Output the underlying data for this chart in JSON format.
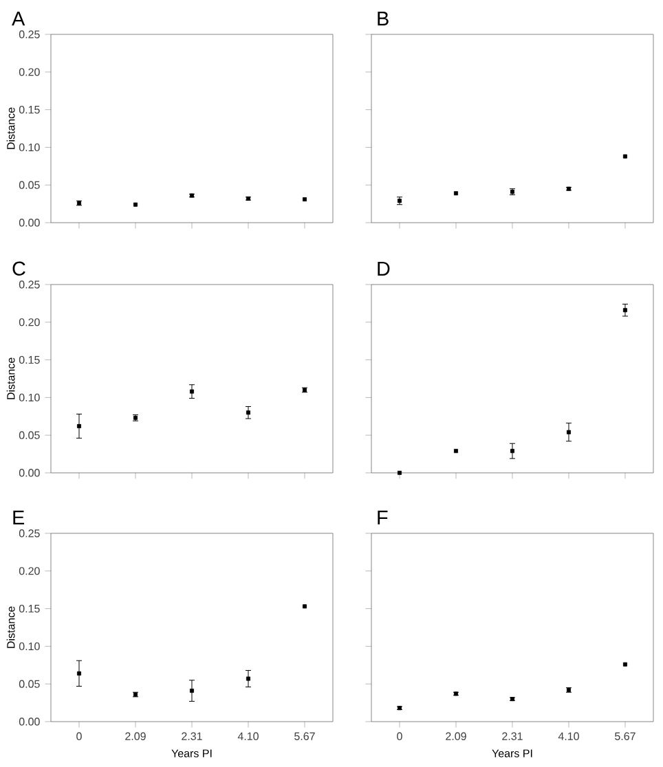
{
  "chart_data": [
    {
      "type": "scatter",
      "title": "A",
      "ylabel": "Distance",
      "categories": [
        "0",
        "2.09",
        "2.31",
        "4.10",
        "5.67"
      ],
      "values": [
        0.026,
        0.024,
        0.036,
        0.032,
        0.031
      ],
      "errors": [
        0.003,
        null,
        0.002,
        0.002,
        null
      ],
      "color": "#000000",
      "marker": "square",
      "ylim": [
        0,
        0.25
      ],
      "yticks": [
        {
          "value": 0,
          "label": "0.00"
        },
        {
          "value": 0.05,
          "label": "0.05"
        },
        {
          "value": 0.1,
          "label": "0.10"
        },
        {
          "value": 0.15,
          "label": "0.15"
        },
        {
          "value": 0.2,
          "label": "0.20"
        },
        {
          "value": 0.25,
          "label": "0.25"
        }
      ],
      "tick_labels": "y"
    },
    {
      "type": "scatter",
      "title": "B",
      "categories": [
        "0",
        "2.09",
        "2.31",
        "4.10",
        "5.67"
      ],
      "values": [
        0.029,
        0.039,
        0.041,
        0.045,
        0.088
      ],
      "errors": [
        0.005,
        null,
        0.004,
        0.002,
        null
      ],
      "color": "#000000",
      "marker": "square",
      "ylim": [
        0,
        0.25
      ],
      "yticks": [
        {
          "value": 0,
          "label": null
        },
        {
          "value": 0.05,
          "label": null
        },
        {
          "value": 0.1,
          "label": null
        },
        {
          "value": 0.15,
          "label": null
        },
        {
          "value": 0.2,
          "label": null
        },
        {
          "value": 0.25,
          "label": null
        }
      ],
      "tick_labels": false
    },
    {
      "type": "scatter",
      "title": "C",
      "ylabel": "Distance",
      "categories": [
        "0",
        "2.09",
        "2.31",
        "4.10",
        "5.67"
      ],
      "values": [
        0.062,
        0.073,
        0.108,
        0.08,
        0.11
      ],
      "errors": [
        0.016,
        0.004,
        0.009,
        0.008,
        0.003
      ],
      "color": "#000000",
      "marker": "square",
      "ylim": [
        0,
        0.25
      ],
      "yticks": [
        {
          "value": 0,
          "label": "0.00"
        },
        {
          "value": 0.05,
          "label": "0.05"
        },
        {
          "value": 0.1,
          "label": "0.10"
        },
        {
          "value": 0.15,
          "label": "0.15"
        },
        {
          "value": 0.2,
          "label": "0.20"
        },
        {
          "value": 0.25,
          "label": "0.25"
        }
      ],
      "tick_labels": "y"
    },
    {
      "type": "scatter",
      "title": "D",
      "categories": [
        "0",
        "2.09",
        "2.31",
        "4.10",
        "5.67"
      ],
      "values": [
        0.0,
        0.029,
        0.029,
        0.054,
        0.216
      ],
      "errors": [
        null,
        null,
        0.01,
        0.012,
        0.008
      ],
      "color": "#000000",
      "marker": "square",
      "ylim": [
        0,
        0.25
      ],
      "yticks": [
        {
          "value": 0,
          "label": null
        },
        {
          "value": 0.05,
          "label": null
        },
        {
          "value": 0.1,
          "label": null
        },
        {
          "value": 0.15,
          "label": null
        },
        {
          "value": 0.2,
          "label": null
        },
        {
          "value": 0.25,
          "label": null
        }
      ],
      "tick_labels": false
    },
    {
      "type": "scatter",
      "title": "E",
      "xlabel": "Years PI",
      "ylabel": "Distance",
      "categories": [
        "0",
        "2.09",
        "2.31",
        "4.10",
        "5.67"
      ],
      "values": [
        0.064,
        0.036,
        0.041,
        0.057,
        0.153
      ],
      "errors": [
        0.017,
        0.003,
        0.014,
        0.011,
        null
      ],
      "color": "#000000",
      "marker": "square",
      "ylim": [
        0,
        0.25
      ],
      "yticks": [
        {
          "value": 0,
          "label": "0.00"
        },
        {
          "value": 0.05,
          "label": "0.05"
        },
        {
          "value": 0.1,
          "label": "0.10"
        },
        {
          "value": 0.15,
          "label": "0.15"
        },
        {
          "value": 0.2,
          "label": "0.20"
        },
        {
          "value": 0.25,
          "label": "0.25"
        }
      ]
    },
    {
      "type": "scatter",
      "title": "F",
      "xlabel": "Years PI",
      "categories": [
        "0",
        "2.09",
        "2.31",
        "4.10",
        "5.67"
      ],
      "values": [
        0.018,
        0.037,
        0.03,
        0.042,
        0.076
      ],
      "errors": [
        0.002,
        0.002,
        0.002,
        0.003,
        null
      ],
      "color": "#000000",
      "marker": "square",
      "ylim": [
        0,
        0.25
      ],
      "yticks": [
        {
          "value": 0,
          "label": null
        },
        {
          "value": 0.05,
          "label": null
        },
        {
          "value": 0.1,
          "label": null
        },
        {
          "value": 0.15,
          "label": null
        },
        {
          "value": 0.2,
          "label": null
        },
        {
          "value": 0.25,
          "label": null
        }
      ],
      "tick_labels": "x"
    }
  ]
}
